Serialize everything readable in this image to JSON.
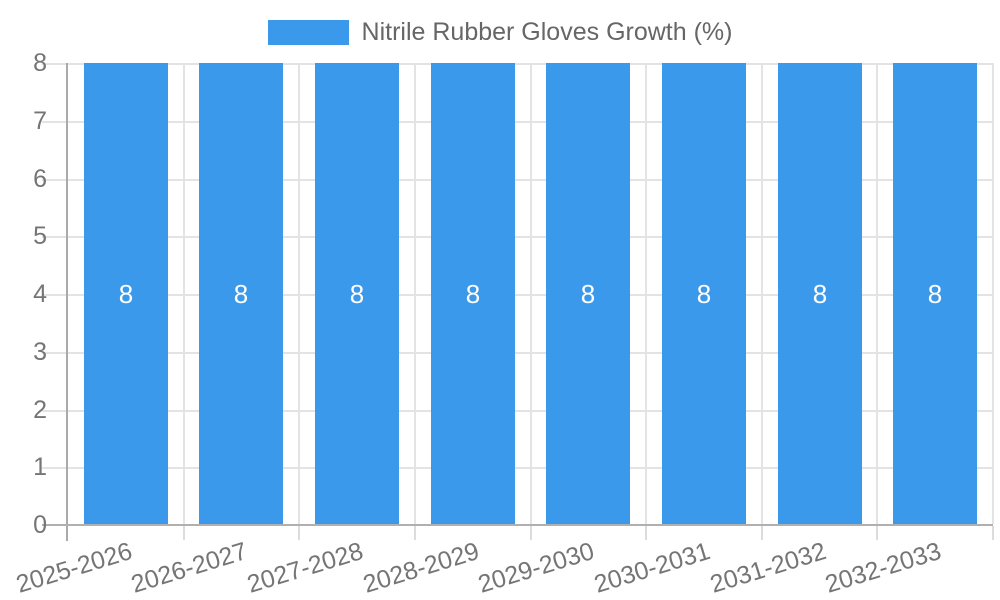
{
  "legend": {
    "label": "Nitrile Rubber Gloves Growth (%)"
  },
  "colors": {
    "bar": "#3B99EC",
    "bar_label": "#ffffff",
    "grid": "#e3e3e3",
    "below_tick": "#dcdcdc",
    "y_axis_line": "#aaaaaa",
    "x_axis_line": "#b0b0b0",
    "tick_text": "#757575",
    "legend_text": "#666666",
    "background": "#ffffff"
  },
  "chart_data": {
    "type": "bar",
    "title": "",
    "xlabel": "",
    "ylabel": "",
    "categories": [
      "2025-2026",
      "2026-2027",
      "2027-2028",
      "2028-2029",
      "2029-2030",
      "2030-2031",
      "2031-2032",
      "2032-2033"
    ],
    "series": [
      {
        "name": "Nitrile Rubber Gloves Growth (%)",
        "values": [
          8,
          8,
          8,
          8,
          8,
          8,
          8,
          8
        ]
      }
    ],
    "data_labels": [
      "8",
      "8",
      "8",
      "8",
      "8",
      "8",
      "8",
      "8"
    ],
    "ylim": [
      0,
      8
    ],
    "y_ticks": [
      "0",
      "1",
      "2",
      "3",
      "4",
      "5",
      "6",
      "7",
      "8"
    ],
    "grid": true,
    "legend_position": "top-center"
  }
}
